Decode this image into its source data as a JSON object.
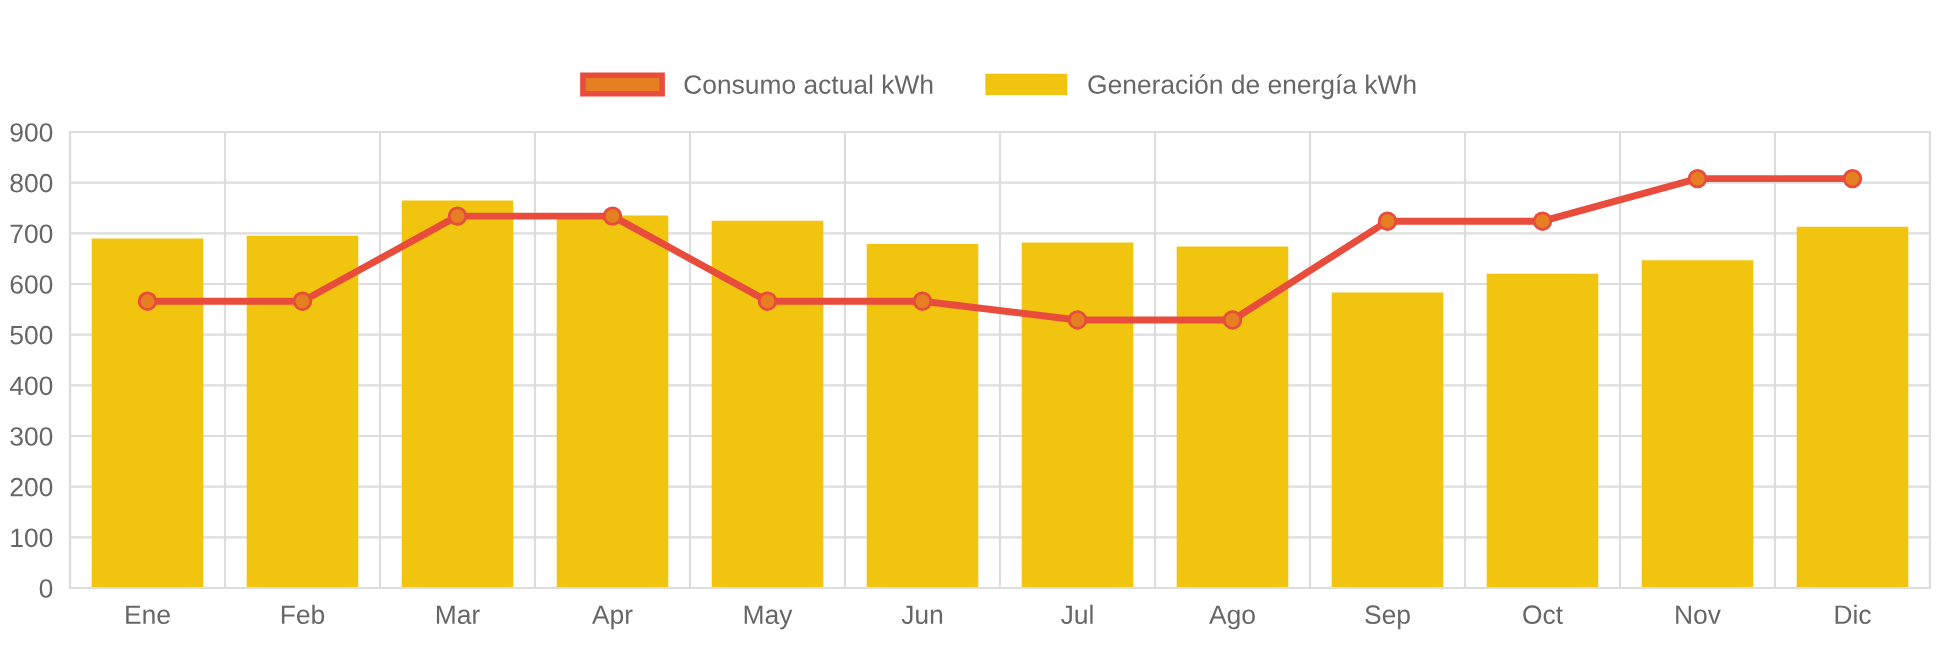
{
  "chart_data": {
    "type": "bar",
    "categories": [
      "Ene",
      "Feb",
      "Mar",
      "Apr",
      "May",
      "Jun",
      "Jul",
      "Ago",
      "Sep",
      "Oct",
      "Nov",
      "Dic"
    ],
    "series": [
      {
        "name": "Consumo actual kWh",
        "type": "line",
        "color": "#e74c3c",
        "values": [
          566,
          566,
          734,
          734,
          566,
          566,
          529,
          529,
          724,
          724,
          808,
          808
        ]
      },
      {
        "name": "Generación de energía kWh",
        "color": "#f1c40f",
        "values": [
          690,
          695,
          765,
          735,
          725,
          679,
          682,
          674,
          583,
          620,
          647,
          713
        ]
      }
    ],
    "ylim": [
      0,
      900
    ],
    "yticks": [
      0,
      100,
      200,
      300,
      400,
      500,
      600,
      700,
      800,
      900
    ],
    "grid": true,
    "legend": "top",
    "marker": "circle"
  }
}
